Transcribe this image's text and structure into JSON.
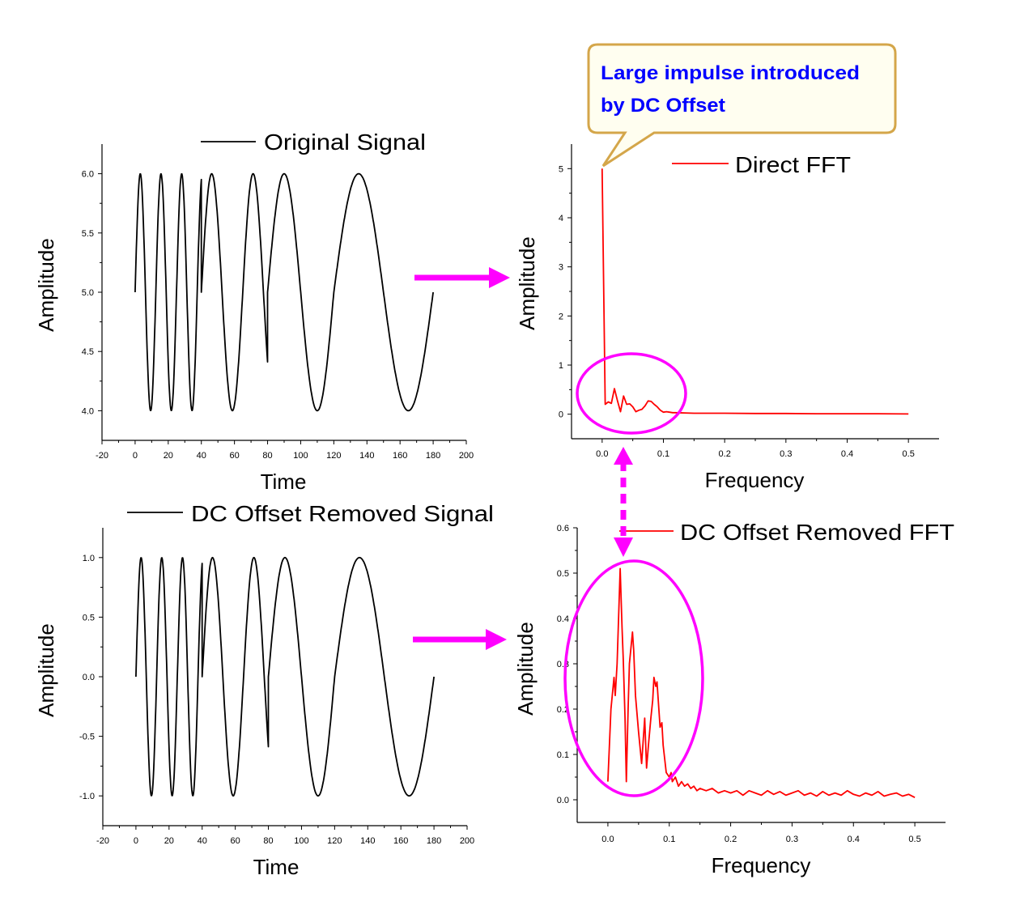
{
  "colors": {
    "signal": "#000000",
    "fft": "#ff0000",
    "annotation": "#ff00ff",
    "callout_border": "#d4a64a",
    "callout_text": "#0000ff"
  },
  "callout": {
    "line1": "Large impulse introduced",
    "line2": "by DC Offset"
  },
  "chart_data": [
    {
      "id": "original",
      "type": "line",
      "legend": "Original Signal",
      "xlabel": "Time",
      "ylabel": "Amplitude",
      "xlim": [
        -20,
        200
      ],
      "ylim": [
        3.75,
        6.25
      ],
      "xticks": [
        "-20",
        "0",
        "20",
        "40",
        "60",
        "80",
        "100",
        "120",
        "140",
        "160",
        "180",
        "200"
      ],
      "yticks": [
        "4.0",
        "4.5",
        "5.0",
        "5.5",
        "6.0"
      ],
      "signal": {
        "offset": 5.0,
        "segments": [
          [
            0,
            40,
            12.5
          ],
          [
            40,
            80,
            25
          ],
          [
            80,
            120,
            40
          ],
          [
            120,
            180,
            60
          ]
        ]
      }
    },
    {
      "id": "direct_fft",
      "type": "line",
      "legend": "Direct FFT",
      "xlabel": "Frequency",
      "ylabel": "Amplitude",
      "xlim": [
        -0.05,
        0.55
      ],
      "ylim": [
        -0.5,
        5.5
      ],
      "xticks": [
        "0.0",
        "0.1",
        "0.2",
        "0.3",
        "0.4",
        "0.5"
      ],
      "yticks": [
        "0",
        "1",
        "2",
        "3",
        "4",
        "5"
      ],
      "values_x": [
        0.0,
        0.005,
        0.01,
        0.015,
        0.02,
        0.025,
        0.03,
        0.035,
        0.04,
        0.045,
        0.05,
        0.055,
        0.06,
        0.065,
        0.07,
        0.075,
        0.08,
        0.085,
        0.09,
        0.095,
        0.1,
        0.105,
        0.11,
        0.115,
        0.12,
        0.15,
        0.2,
        0.25,
        0.3,
        0.35,
        0.4,
        0.45,
        0.5
      ],
      "values_y": [
        5.0,
        0.2,
        0.25,
        0.22,
        0.52,
        0.27,
        0.05,
        0.37,
        0.2,
        0.21,
        0.15,
        0.05,
        0.08,
        0.1,
        0.17,
        0.27,
        0.26,
        0.2,
        0.15,
        0.08,
        0.04,
        0.05,
        0.04,
        0.03,
        0.03,
        0.02,
        0.02,
        0.015,
        0.015,
        0.01,
        0.01,
        0.01,
        0.005
      ]
    },
    {
      "id": "dc_removed",
      "type": "line",
      "legend": "DC Offset Removed Signal",
      "xlabel": "Time",
      "ylabel": "Amplitude",
      "xlim": [
        -20,
        200
      ],
      "ylim": [
        -1.25,
        1.25
      ],
      "xticks": [
        "-20",
        "0",
        "20",
        "40",
        "60",
        "80",
        "100",
        "120",
        "140",
        "160",
        "180",
        "200"
      ],
      "yticks": [
        "-1.0",
        "-0.5",
        "0.0",
        "0.5",
        "1.0"
      ],
      "signal": {
        "offset": 0.0,
        "segments": [
          [
            0,
            40,
            12.5
          ],
          [
            40,
            80,
            25
          ],
          [
            80,
            120,
            40
          ],
          [
            120,
            180,
            60
          ]
        ]
      }
    },
    {
      "id": "dc_removed_fft",
      "type": "line",
      "legend": "DC Offset Removed FFT",
      "xlabel": "Frequency",
      "ylabel": "Amplitude",
      "xlim": [
        -0.05,
        0.55
      ],
      "ylim": [
        -0.05,
        0.6
      ],
      "xticks": [
        "0.0",
        "0.1",
        "0.2",
        "0.3",
        "0.4",
        "0.5"
      ],
      "yticks": [
        "0.0",
        "0.1",
        "0.2",
        "0.3",
        "0.4",
        "0.5",
        "0.6"
      ],
      "values_x": [
        0.0,
        0.005,
        0.01,
        0.012,
        0.015,
        0.02,
        0.023,
        0.025,
        0.028,
        0.03,
        0.033,
        0.035,
        0.04,
        0.042,
        0.045,
        0.05,
        0.055,
        0.058,
        0.06,
        0.063,
        0.066,
        0.07,
        0.073,
        0.075,
        0.078,
        0.08,
        0.085,
        0.088,
        0.09,
        0.095,
        0.1,
        0.103,
        0.105,
        0.11,
        0.115,
        0.12,
        0.125,
        0.13,
        0.135,
        0.14,
        0.145,
        0.15,
        0.16,
        0.17,
        0.18,
        0.19,
        0.2,
        0.21,
        0.22,
        0.23,
        0.24,
        0.25,
        0.26,
        0.27,
        0.28,
        0.29,
        0.3,
        0.31,
        0.32,
        0.33,
        0.34,
        0.35,
        0.36,
        0.37,
        0.38,
        0.39,
        0.4,
        0.41,
        0.42,
        0.43,
        0.44,
        0.45,
        0.46,
        0.47,
        0.48,
        0.49,
        0.5
      ],
      "values_y": [
        0.04,
        0.2,
        0.27,
        0.23,
        0.3,
        0.51,
        0.38,
        0.31,
        0.18,
        0.04,
        0.2,
        0.3,
        0.37,
        0.33,
        0.23,
        0.15,
        0.08,
        0.14,
        0.18,
        0.07,
        0.12,
        0.18,
        0.22,
        0.27,
        0.25,
        0.26,
        0.16,
        0.17,
        0.12,
        0.06,
        0.05,
        0.06,
        0.04,
        0.05,
        0.03,
        0.04,
        0.03,
        0.035,
        0.025,
        0.03,
        0.02,
        0.025,
        0.02,
        0.025,
        0.015,
        0.02,
        0.015,
        0.02,
        0.01,
        0.02,
        0.015,
        0.01,
        0.02,
        0.012,
        0.018,
        0.01,
        0.015,
        0.02,
        0.01,
        0.015,
        0.008,
        0.018,
        0.01,
        0.015,
        0.01,
        0.02,
        0.012,
        0.008,
        0.015,
        0.01,
        0.018,
        0.008,
        0.012,
        0.015,
        0.008,
        0.012,
        0.005
      ]
    }
  ]
}
